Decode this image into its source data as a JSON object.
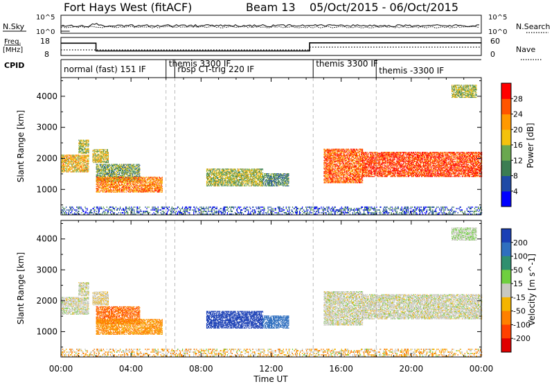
{
  "header": {
    "station": "Fort Hays West (fitACF)",
    "beam": "Beam 13",
    "date_range": "05/Oct/2015 - 06/Oct/2015"
  },
  "sky_panel": {
    "left_label": "N.Sky",
    "right_label": "N.Search",
    "left_ticks": [
      "10^5",
      "10^0"
    ],
    "right_ticks": [
      "10^5",
      "10^0"
    ],
    "right_legend_line": "dotted"
  },
  "freq_panel": {
    "left_label_1": "Freq.",
    "left_label_2": "[MHz]",
    "left_ticks": [
      "18",
      "8"
    ],
    "right_label": "Nave",
    "right_ticks": [
      "60",
      "0"
    ]
  },
  "cpid": {
    "label": "CPID",
    "segments": [
      {
        "text": "normal (fast) 151 IF"
      },
      {
        "text": "themis 3300 IF"
      },
      {
        "text": "rbsp CT-trig 220 IF"
      },
      {
        "text": "themis 3300 IF"
      },
      {
        "text": "themis -3300 IF"
      }
    ]
  },
  "power_panel": {
    "ylabel": "Slant Range [km]",
    "yticks": [
      "1000",
      "2000",
      "3000",
      "4000"
    ],
    "colorbar_label": "Power [dB]",
    "colorbar_ticks": [
      "4",
      "8",
      "12",
      "16",
      "20",
      "24",
      "28"
    ],
    "colors": [
      "#0000ff",
      "#1f4aa6",
      "#3b7d52",
      "#6aa84f",
      "#f4c20d",
      "#ff9900",
      "#ff5500",
      "#ff0000"
    ]
  },
  "velocity_panel": {
    "ylabel": "Slant Range [km]",
    "yticks": [
      "1000",
      "2000",
      "3000",
      "4000"
    ],
    "colorbar_label": "Velocity [m s^-1]",
    "colorbar_ticks": [
      "200",
      "100",
      "50",
      "15",
      "-15",
      "-50",
      "-100",
      "-200"
    ],
    "colors": [
      "#1a3fb5",
      "#2f6fbf",
      "#2f8f6f",
      "#6fcf3f",
      "#c8c8c0",
      "#f4b400",
      "#ff8000",
      "#ff4000",
      "#e00000"
    ]
  },
  "xaxis": {
    "label": "Time UT",
    "ticks": [
      "00:00",
      "04:00",
      "08:00",
      "12:00",
      "16:00",
      "20:00",
      "00:00"
    ]
  },
  "chart_data": {
    "type": "heatmap",
    "title": "Fort Hays West (fitACF)",
    "xlabel": "Time UT",
    "ylabel": "Slant Range [km]",
    "xlim_hours": [
      0,
      24
    ],
    "ylim_km": [
      180,
      4600
    ],
    "power_colorbar_db": [
      0,
      30
    ],
    "velocity_colorbar_ms": [
      -200,
      200
    ],
    "frequency_mhz": [
      {
        "start_h": 0.0,
        "end_h": 2.0,
        "value": 14.8
      },
      {
        "start_h": 2.0,
        "end_h": 14.2,
        "value": 10.5
      },
      {
        "start_h": 14.2,
        "end_h": 24.0,
        "value": 15.0
      }
    ],
    "cpid_boundaries_h": [
      6.0,
      6.5,
      14.4,
      18.0
    ],
    "scatter_regions": [
      {
        "name": "echo-a",
        "start_h": 0.0,
        "end_h": 1.6,
        "range_km": [
          1550,
          2100
        ],
        "power_db": 18,
        "velocity_ms": 0
      },
      {
        "name": "echo-b",
        "start_h": 1.0,
        "end_h": 1.6,
        "range_km": [
          2150,
          2600
        ],
        "power_db": 14,
        "velocity_ms": 0
      },
      {
        "name": "echo-c",
        "start_h": 1.8,
        "end_h": 2.7,
        "range_km": [
          1850,
          2300
        ],
        "power_db": 16,
        "velocity_ms": -10
      },
      {
        "name": "echo-d",
        "start_h": 2.0,
        "end_h": 4.5,
        "range_km": [
          1250,
          1800
        ],
        "power_db": 12,
        "velocity_ms": -70
      },
      {
        "name": "echo-e",
        "start_h": 2.0,
        "end_h": 5.8,
        "range_km": [
          900,
          1400
        ],
        "power_db": 22,
        "velocity_ms": -40
      },
      {
        "name": "echo-f",
        "start_h": 8.3,
        "end_h": 11.5,
        "range_km": [
          1100,
          1650
        ],
        "power_db": 14,
        "velocity_ms": 180
      },
      {
        "name": "echo-g",
        "start_h": 11.5,
        "end_h": 13.0,
        "range_km": [
          1100,
          1500
        ],
        "power_db": 10,
        "velocity_ms": 120
      },
      {
        "name": "echo-h",
        "start_h": 15.0,
        "end_h": 17.2,
        "range_km": [
          1200,
          2300
        ],
        "power_db": 24,
        "velocity_ms": 0
      },
      {
        "name": "echo-i",
        "start_h": 17.2,
        "end_h": 24.0,
        "range_km": [
          1400,
          2200
        ],
        "power_db": 26,
        "velocity_ms": 0
      },
      {
        "name": "echo-j",
        "start_h": 22.3,
        "end_h": 23.7,
        "range_km": [
          3950,
          4350
        ],
        "power_db": 14,
        "velocity_ms": 10
      },
      {
        "name": "ground-scatter",
        "start_h": 0.0,
        "end_h": 24.0,
        "range_km": [
          180,
          420
        ],
        "power_db": 6,
        "velocity_ms": -20
      }
    ]
  }
}
